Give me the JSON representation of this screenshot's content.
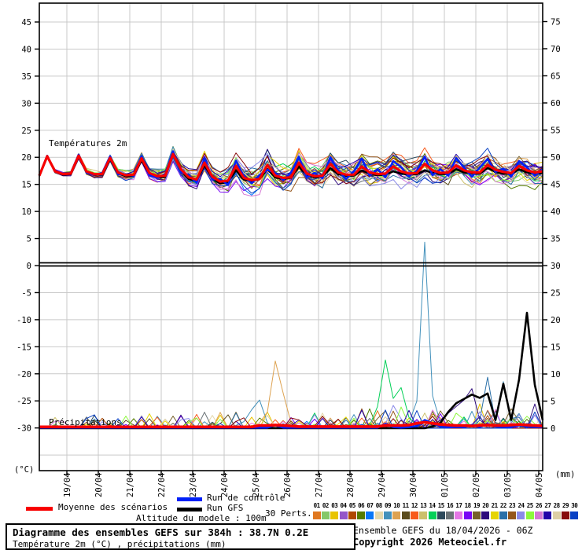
{
  "chart_data": {
    "type": "line",
    "temp_section_label": "Températures 2m",
    "precip_section_label": "Précipitations",
    "left_axis": {
      "unit": "(°C)",
      "ticks": [
        45,
        40,
        35,
        30,
        25,
        20,
        15,
        10,
        5,
        0,
        -5,
        -10,
        -15,
        -20,
        -25,
        -30
      ]
    },
    "right_axis": {
      "unit": "(mm)",
      "ticks": [
        75,
        70,
        65,
        60,
        55,
        50,
        45,
        40,
        35,
        30,
        25,
        20,
        15,
        10,
        5,
        0
      ]
    },
    "x_dates": [
      "19/04",
      "20/04",
      "21/04",
      "22/04",
      "23/04",
      "24/04",
      "25/04",
      "26/04",
      "27/04",
      "28/04",
      "29/04",
      "30/04",
      "01/05",
      "02/05",
      "03/05",
      "04/05"
    ],
    "time_step_hours": 6,
    "forecast_hours": 384,
    "colors": {
      "mean": "#f80000",
      "control": "#0020f8",
      "gfs": "#000000",
      "grid": "#c9c9c9",
      "frame": "#000000"
    },
    "series": {
      "mean_temp": [
        16.6,
        20.2,
        17.4,
        16.9,
        17.0,
        20.3,
        17.4,
        16.9,
        16.9,
        19.9,
        17.2,
        16.7,
        16.8,
        19.8,
        17.1,
        16.5,
        16.6,
        20.6,
        17.8,
        16.3,
        15.9,
        19.0,
        16.4,
        15.5,
        15.7,
        18.4,
        16.2,
        15.8,
        16.0,
        18.6,
        16.6,
        16.2,
        16.3,
        19.0,
        17.0,
        16.5,
        16.6,
        18.8,
        17.2,
        16.8,
        16.8,
        18.3,
        17.2,
        16.9,
        17.0,
        18.3,
        17.4,
        17.0,
        17.1,
        18.8,
        17.6,
        17.1,
        17.2,
        18.5,
        17.6,
        17.2,
        17.2,
        18.6,
        17.7,
        17.3,
        17.1,
        18.4,
        17.6,
        17.2,
        17.4
      ],
      "control_temp": [
        16.6,
        20.3,
        17.3,
        16.9,
        17.1,
        20.5,
        17.2,
        16.8,
        17.1,
        20.2,
        16.9,
        16.8,
        16.6,
        20.2,
        16.7,
        16.2,
        16.9,
        21.1,
        17.3,
        16.7,
        15.3,
        19.8,
        15.9,
        16.0,
        14.9,
        19.4,
        16.5,
        15.2,
        16.7,
        17.7,
        17.1,
        15.8,
        17.2,
        20.1,
        16.3,
        17.1,
        16.1,
        20.0,
        17.6,
        16.0,
        17.4,
        19.8,
        16.6,
        17.8,
        16.3,
        19.3,
        18.2,
        16.5,
        17.5,
        20.1,
        16.7,
        17.8,
        16.6,
        19.9,
        18.1,
        16.4,
        18.1,
        19.7,
        17.3,
        17.9,
        16.4,
        19.3,
        18.1,
        16.6,
        17.8
      ],
      "gfs_temp": [
        16.6,
        20.1,
        17.5,
        16.8,
        16.9,
        20.2,
        17.3,
        16.8,
        16.8,
        19.7,
        17.0,
        16.5,
        16.6,
        19.5,
        16.8,
        16.2,
        16.4,
        20.9,
        17.5,
        16.0,
        15.6,
        18.6,
        16.0,
        15.2,
        15.4,
        17.6,
        15.9,
        15.6,
        16.0,
        17.8,
        16.3,
        16.0,
        16.2,
        18.3,
        16.7,
        16.3,
        16.4,
        18.0,
        16.9,
        16.6,
        16.6,
        17.6,
        16.9,
        16.7,
        16.8,
        17.4,
        17.0,
        16.8,
        16.9,
        17.6,
        17.1,
        16.9,
        16.9,
        17.8,
        17.2,
        17.0,
        17.0,
        18.0,
        17.3,
        17.0,
        16.9,
        17.8,
        17.2,
        17.0,
        17.1
      ],
      "mean_precip": [
        0.25,
        0.25,
        0.25,
        0.25,
        0.25,
        0.25,
        0.25,
        0.25,
        0.25,
        0.25,
        0.25,
        0.25,
        0.25,
        0.25,
        0.25,
        0.25,
        0.25,
        0.25,
        0.25,
        0.25,
        0.25,
        0.25,
        0.25,
        0.25,
        0.25,
        0.25,
        0.25,
        0.25,
        0.5,
        0.5,
        0.6,
        0.5,
        0.4,
        0.3,
        0.3,
        0.3,
        0.3,
        0.3,
        0.3,
        0.3,
        0.3,
        0.3,
        0.3,
        0.3,
        0.5,
        0.5,
        0.5,
        0.6,
        0.9,
        1.1,
        0.9,
        0.7,
        0.6,
        0.5,
        0.5,
        0.4,
        0.5,
        0.6,
        0.5,
        0.5,
        0.6,
        0.7,
        0.6,
        0.5,
        0.4
      ],
      "control_precip": [
        0.1,
        0.1,
        0.1,
        0.1,
        0.1,
        0.1,
        0.1,
        0.1,
        0.1,
        0.1,
        0.1,
        0.1,
        0.1,
        0.1,
        0.1,
        0.1,
        0.1,
        0.1,
        0.1,
        0.1,
        0.1,
        0.1,
        0.1,
        0.1,
        0.1,
        0.1,
        0.1,
        0.1,
        0.1,
        0.1,
        0.6,
        0.1,
        0.1,
        0.1,
        0.1,
        0.1,
        0.1,
        0.1,
        0.1,
        0.1,
        0.1,
        0.1,
        0.1,
        0.1,
        0.8,
        0.2,
        0.1,
        0.2,
        0.4,
        1.5,
        0.9,
        0.3,
        0.2,
        0.2,
        0.2,
        0.6,
        0.2,
        0.8,
        0.3,
        0.2,
        0.2,
        0.5,
        0.3,
        0.2,
        0.2
      ],
      "gfs_precip": [
        0,
        0,
        0,
        0,
        0,
        0,
        0,
        0,
        0,
        0,
        0,
        0,
        0,
        0,
        0,
        0,
        0,
        0,
        0,
        0,
        0,
        0,
        0,
        0,
        0,
        0,
        0,
        0,
        0,
        0,
        0,
        0,
        0,
        0,
        0,
        0,
        0,
        0,
        0,
        0,
        0,
        0,
        0,
        0,
        0,
        0,
        0,
        0,
        0,
        0,
        0.3,
        1.0,
        3.0,
        4.6,
        5.4,
        6.2,
        5.6,
        6.4,
        1.5,
        8.2,
        1.5,
        9.0,
        21.3,
        8.0,
        1.5
      ],
      "spread_by_day": [
        0.3,
        0.5,
        0.8,
        1.1,
        1.5,
        2.0,
        2.6,
        3.0,
        3.1,
        3.0,
        2.9,
        2.8,
        2.8,
        2.9,
        3.0,
        3.0,
        3.0
      ],
      "precip_events": [
        {
          "member": 9,
          "start": 25,
          "values": [
            0.5,
            1.2,
            3.4,
            5.2,
            1.0
          ]
        },
        {
          "member": 10,
          "start": 27,
          "values": [
            0.3,
            1.0,
            3.0,
            12.4,
            6.5,
            1.0
          ]
        },
        {
          "member": 14,
          "start": 42,
          "values": [
            0.5,
            4.0,
            12.6,
            5.5,
            7.5,
            2.0,
            0.5
          ]
        },
        {
          "member": 9,
          "start": 47,
          "values": [
            1.0,
            5.0,
            34.3,
            6.0,
            1.0
          ]
        },
        {
          "member": 20,
          "start": 50,
          "values": [
            0.5,
            1.5,
            2.8,
            4.0,
            5.2,
            7.3,
            1.5,
            0.5
          ]
        },
        {
          "member": 22,
          "start": 56,
          "values": [
            1.5,
            9.4,
            1.0
          ]
        },
        {
          "member": 9,
          "start": 58,
          "values": [
            2.0,
            8.6,
            1.0
          ]
        },
        {
          "member": 19,
          "start": 50,
          "values": [
            0.5,
            3.2,
            1.0
          ]
        },
        {
          "member": 19,
          "start": 59,
          "values": [
            0.8,
            3.6,
            1.2
          ]
        },
        {
          "member": 29,
          "start": 35,
          "values": [
            0.4,
            2.2,
            0.5
          ]
        },
        {
          "member": 29,
          "start": 49,
          "values": [
            0.5,
            2.2,
            0.4
          ]
        },
        {
          "member": 25,
          "start": 59,
          "values": [
            0.5,
            1.8,
            0.6,
            2.2,
            0.8
          ]
        },
        {
          "member": 27,
          "start": 32,
          "values": [
            0.5,
            1.5,
            0.5
          ]
        }
      ]
    },
    "members": [
      {
        "id": "01",
        "color": "#e07820"
      },
      {
        "id": "02",
        "color": "#84c868"
      },
      {
        "id": "03",
        "color": "#e8c400"
      },
      {
        "id": "04",
        "color": "#9455c8"
      },
      {
        "id": "05",
        "color": "#b04800"
      },
      {
        "id": "06",
        "color": "#567c00"
      },
      {
        "id": "07",
        "color": "#0877f8"
      },
      {
        "id": "08",
        "color": "#e4d8ac"
      },
      {
        "id": "09",
        "color": "#4391bb"
      },
      {
        "id": "10",
        "color": "#dda251"
      },
      {
        "id": "11",
        "color": "#5c4c1c"
      },
      {
        "id": "12",
        "color": "#f85a1c"
      },
      {
        "id": "13",
        "color": "#ccc06c"
      },
      {
        "id": "14",
        "color": "#04d058"
      },
      {
        "id": "15",
        "color": "#2e4a5c"
      },
      {
        "id": "16",
        "color": "#6b7377"
      },
      {
        "id": "17",
        "color": "#e577e5"
      },
      {
        "id": "18",
        "color": "#7a05f5"
      },
      {
        "id": "19",
        "color": "#76602a"
      },
      {
        "id": "20",
        "color": "#2e0a7c"
      },
      {
        "id": "21",
        "color": "#e5d404"
      },
      {
        "id": "22",
        "color": "#2a70a8"
      },
      {
        "id": "23",
        "color": "#94561c"
      },
      {
        "id": "24",
        "color": "#8a8ae8"
      },
      {
        "id": "25",
        "color": "#8cf83c"
      },
      {
        "id": "26",
        "color": "#d478d4"
      },
      {
        "id": "27",
        "color": "#2304a8"
      },
      {
        "id": "28",
        "color": "#ddcfa5"
      },
      {
        "id": "29",
        "color": "#880c0c"
      },
      {
        "id": "30",
        "color": "#0a42c4"
      }
    ]
  },
  "legend": {
    "mean_label": "Moyenne des scénarios",
    "control_label": "Run de contrôle",
    "gfs_label": "Run GFS",
    "perts_label": "30 Perts."
  },
  "footer": {
    "altitude": "Altitude du modele : 100m",
    "box_title": "Diagramme des ensembles GEFS sur 384h : 38.7N 0.2E",
    "box_subtitle": "Température 2m (°C) , précipitations (mm)",
    "run_info": "Ensemble GEFS du 18/04/2026 - 06Z",
    "copyright": "Copyright 2026 Meteociel.fr"
  }
}
